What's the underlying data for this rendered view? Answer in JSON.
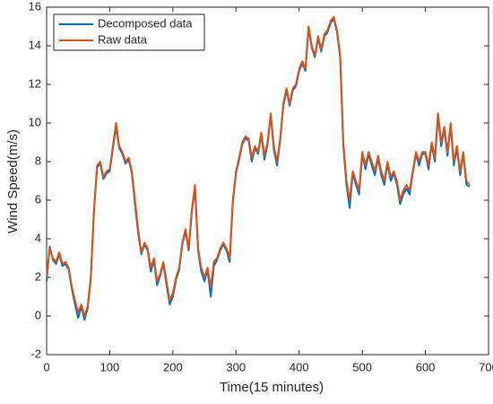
{
  "chart_data": {
    "type": "line",
    "xlabel": "Time(15 minutes)",
    "ylabel": "Wind Speed(m/s)",
    "x": [
      0,
      5,
      10,
      15,
      20,
      25,
      30,
      35,
      40,
      45,
      50,
      55,
      60,
      65,
      70,
      75,
      80,
      85,
      90,
      95,
      100,
      105,
      110,
      115,
      120,
      125,
      130,
      135,
      140,
      145,
      150,
      155,
      160,
      165,
      170,
      175,
      180,
      185,
      190,
      195,
      200,
      205,
      210,
      215,
      220,
      225,
      230,
      235,
      240,
      245,
      250,
      255,
      260,
      265,
      270,
      275,
      280,
      285,
      290,
      295,
      300,
      305,
      310,
      315,
      320,
      325,
      330,
      335,
      340,
      345,
      350,
      355,
      360,
      365,
      370,
      375,
      380,
      385,
      390,
      395,
      400,
      405,
      410,
      415,
      420,
      425,
      430,
      435,
      440,
      445,
      450,
      455,
      460,
      465,
      470,
      475,
      480,
      485,
      490,
      495,
      500,
      505,
      510,
      515,
      520,
      525,
      530,
      535,
      540,
      545,
      550,
      555,
      560,
      565,
      570,
      575,
      580,
      585,
      590,
      595,
      600,
      605,
      610,
      615,
      620,
      625,
      630,
      635,
      640,
      645,
      650,
      655,
      660,
      665,
      670
    ],
    "series": [
      {
        "name": "Decomposed data",
        "color": "#0072bd",
        "values": [
          1.8,
          3.6,
          2.9,
          2.7,
          3.2,
          2.6,
          2.7,
          2.4,
          1.4,
          0.6,
          -0.1,
          0.5,
          -0.2,
          0.4,
          1.9,
          5.4,
          7.7,
          7.9,
          7.1,
          7.4,
          7.5,
          8.7,
          9.8,
          8.7,
          8.4,
          7.9,
          8.1,
          7.4,
          5.8,
          4.3,
          3.2,
          3.7,
          3.4,
          2.3,
          2.9,
          1.6,
          2.1,
          2.7,
          1.6,
          0.6,
          1.0,
          1.9,
          2.4,
          3.7,
          4.4,
          3.4,
          5.4,
          6.6,
          3.4,
          2.3,
          1.8,
          2.4,
          1.0,
          2.6,
          2.9,
          3.4,
          3.7,
          3.4,
          2.8,
          5.9,
          7.4,
          8.1,
          8.9,
          9.2,
          9.1,
          8.0,
          8.7,
          8.4,
          9.4,
          8.1,
          8.9,
          10.4,
          8.6,
          7.8,
          9.1,
          10.9,
          11.7,
          10.9,
          11.7,
          11.9,
          12.7,
          13.1,
          12.7,
          14.9,
          13.9,
          13.4,
          14.4,
          13.7,
          14.5,
          14.7,
          15.2,
          15.4,
          14.7,
          13.4,
          8.8,
          6.8,
          5.6,
          7.4,
          6.8,
          6.3,
          8.4,
          7.6,
          8.4,
          7.8,
          7.3,
          8.2,
          7.3,
          6.8,
          7.9,
          7.0,
          7.4,
          6.8,
          5.8,
          6.3,
          6.6,
          6.3,
          7.4,
          8.4,
          7.8,
          8.4,
          8.4,
          7.6,
          8.9,
          8.0,
          10.4,
          8.8,
          9.7,
          8.3,
          9.9,
          7.8,
          8.7,
          7.3,
          8.4,
          6.8,
          6.7
        ]
      },
      {
        "name": "Raw data",
        "color": "#d95319",
        "values": [
          2.0,
          3.5,
          3.0,
          2.8,
          3.3,
          2.7,
          2.8,
          2.5,
          1.5,
          0.8,
          0.2,
          0.6,
          0.0,
          0.5,
          2.0,
          5.5,
          7.8,
          8.0,
          7.2,
          7.5,
          7.6,
          8.8,
          10.0,
          8.8,
          8.5,
          8.0,
          8.2,
          7.5,
          6.0,
          4.5,
          3.3,
          3.8,
          3.5,
          2.5,
          3.0,
          1.8,
          2.2,
          2.8,
          1.8,
          0.8,
          1.2,
          2.0,
          2.5,
          3.8,
          4.5,
          3.5,
          5.5,
          6.8,
          3.5,
          2.5,
          2.0,
          2.5,
          1.5,
          2.8,
          3.0,
          3.5,
          3.8,
          3.5,
          3.0,
          6.0,
          7.5,
          8.2,
          9.0,
          9.3,
          9.2,
          8.2,
          8.8,
          8.5,
          9.5,
          8.3,
          9.0,
          10.5,
          8.8,
          8.0,
          9.2,
          11.0,
          11.8,
          11.0,
          11.8,
          12.0,
          12.8,
          13.2,
          12.8,
          15.0,
          14.0,
          13.5,
          14.5,
          13.8,
          14.6,
          14.8,
          15.3,
          15.5,
          14.8,
          13.5,
          9.0,
          7.0,
          6.0,
          7.5,
          7.0,
          6.5,
          8.5,
          7.8,
          8.5,
          8.0,
          7.5,
          8.3,
          7.5,
          7.0,
          8.0,
          7.2,
          7.5,
          7.0,
          6.0,
          6.5,
          6.8,
          6.5,
          7.5,
          8.5,
          8.0,
          8.5,
          8.5,
          7.8,
          9.0,
          8.2,
          10.5,
          9.0,
          9.8,
          8.5,
          10.0,
          8.0,
          8.8,
          7.5,
          8.5,
          7.0,
          6.8
        ]
      }
    ],
    "xlim": [
      0,
      700
    ],
    "xticks": [
      0,
      100,
      200,
      300,
      400,
      500,
      600,
      700
    ],
    "ylim": [
      -2,
      16
    ],
    "yticks": [
      -2,
      0,
      2,
      4,
      6,
      8,
      10,
      12,
      14,
      16
    ],
    "legend": "upper left"
  }
}
